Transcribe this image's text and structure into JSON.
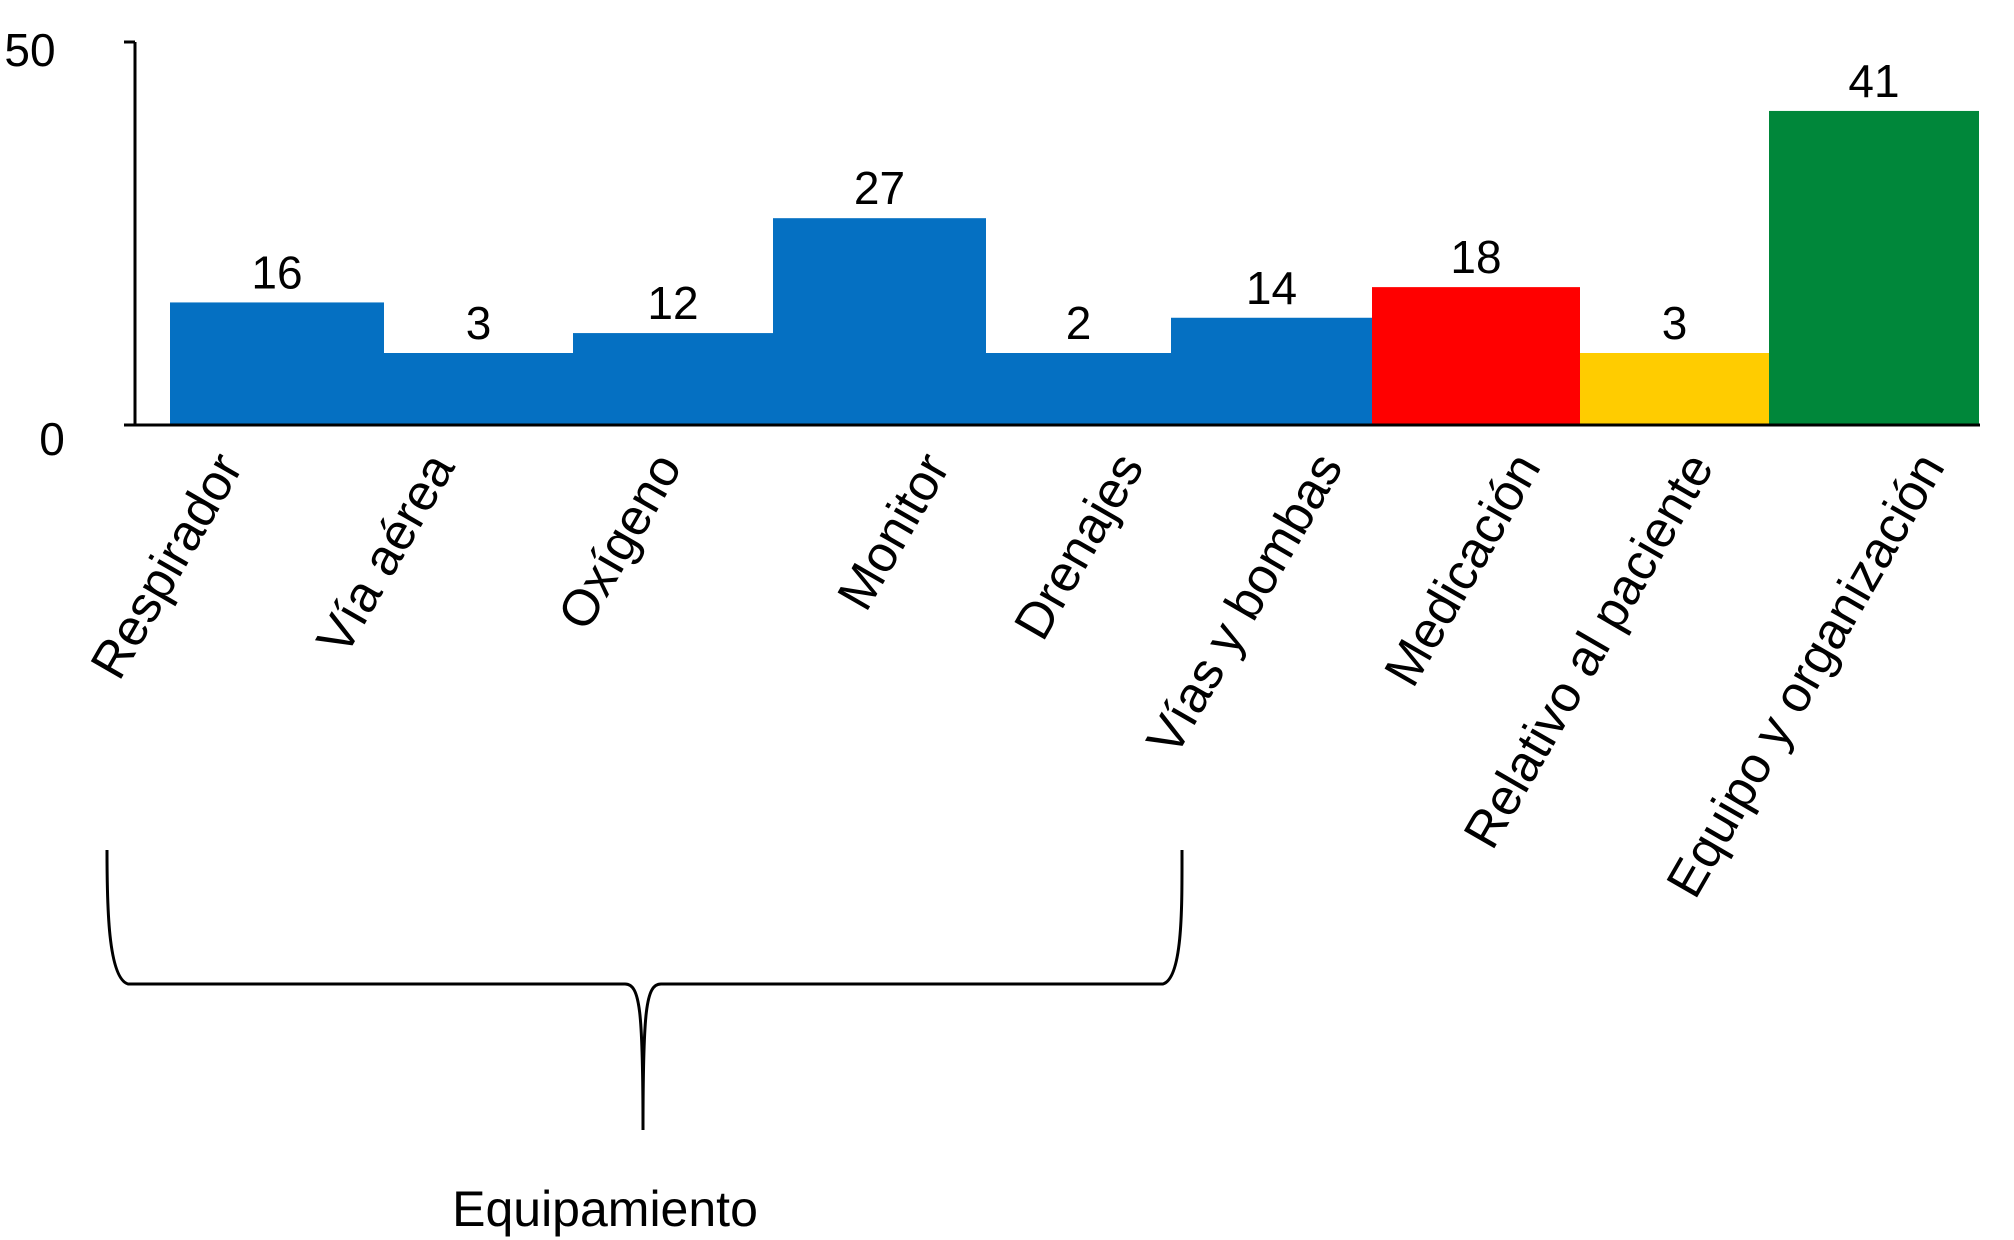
{
  "chart_data": {
    "type": "bar",
    "title": "",
    "xlabel": "",
    "ylabel": "",
    "ylim": [
      0,
      50
    ],
    "y_ticks": [
      "0",
      "50"
    ],
    "grid": false,
    "categories": [
      "Respirador",
      "Vía aérea",
      "Oxígeno",
      "Monitor",
      "Drenajes",
      "Vías y bombas",
      "Medicación",
      "Relativo al paciente",
      "Equipo y organización"
    ],
    "values": [
      16,
      3,
      12,
      27,
      2,
      14,
      18,
      3,
      41
    ],
    "data_labels": [
      "16",
      "3",
      "12",
      "27",
      "2",
      "14",
      "18",
      "3",
      "41"
    ],
    "colors": [
      "#0570C2",
      "#0570C2",
      "#0570C2",
      "#0570C2",
      "#0570C2",
      "#0570C2",
      "#FF0000",
      "#FFCC00",
      "#00873A"
    ],
    "group_annotation": {
      "label": "Equipamiento",
      "categories": [
        "Respirador",
        "Vía aérea",
        "Oxígeno",
        "Monitor",
        "Drenajes",
        "Vías y bombas"
      ]
    }
  }
}
